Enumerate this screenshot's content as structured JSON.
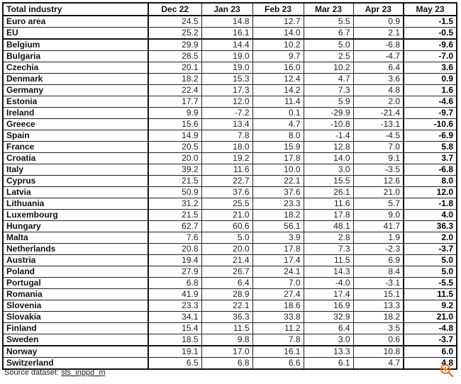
{
  "table": {
    "headers": [
      "Total industry",
      "Dec 22",
      "Jan 23",
      "Feb 23",
      "Mar 23",
      "Apr 23",
      "May 23"
    ],
    "rows": [
      {
        "name": "Euro area",
        "values": [
          "24.5",
          "14.8",
          "12.7",
          "5.5",
          "0.9",
          "-1.5"
        ]
      },
      {
        "name": "EU",
        "values": [
          "25.2",
          "16.1",
          "14.0",
          "6.7",
          "2.1",
          "-0.5"
        ]
      },
      {
        "name": "Belgium",
        "values": [
          "29.9",
          "14.4",
          "10.2",
          "5.0",
          "-6.8",
          "-9.6"
        ]
      },
      {
        "name": "Bulgaria",
        "values": [
          "28.5",
          "19.0",
          "9.7",
          "2.5",
          "-4.7",
          "-7.0"
        ]
      },
      {
        "name": "Czechia",
        "values": [
          "20.1",
          "19.0",
          "16.0",
          "10.2",
          "6.4",
          "3.6"
        ]
      },
      {
        "name": "Denmark",
        "values": [
          "18.2",
          "15.3",
          "12.4",
          "4.7",
          "3.6",
          "0.9"
        ]
      },
      {
        "name": "Germany",
        "values": [
          "22.4",
          "17.3",
          "14.2",
          "7.3",
          "4.8",
          "1.6"
        ]
      },
      {
        "name": "Estonia",
        "values": [
          "17.7",
          "12.0",
          "11.4",
          "5.9",
          "2.0",
          "-4.6"
        ]
      },
      {
        "name": "Ireland",
        "values": [
          "9.9",
          "-7.2",
          "0.1",
          "-29.9",
          "-21.4",
          "-9.7"
        ]
      },
      {
        "name": "Greece",
        "values": [
          "15.6",
          "13.4",
          "4.7",
          "-10.8",
          "-13.1",
          "-10.6"
        ]
      },
      {
        "name": "Spain",
        "values": [
          "14.9",
          "7.8",
          "8.0",
          "-1.4",
          "-4.5",
          "-6.9"
        ]
      },
      {
        "name": "France",
        "values": [
          "20.5",
          "18.0",
          "15.9",
          "12.8",
          "7.0",
          "5.8"
        ]
      },
      {
        "name": "Croatia",
        "values": [
          "20.0",
          "19.2",
          "17.8",
          "14.0",
          "9.1",
          "3.7"
        ]
      },
      {
        "name": "Italy",
        "values": [
          "39.2",
          "11.6",
          "10.0",
          "3.0",
          "-3.5",
          "-6.8"
        ]
      },
      {
        "name": "Cyprus",
        "values": [
          "21.5",
          "22.7",
          "22.1",
          "15.5",
          "12.6",
          "8.0"
        ]
      },
      {
        "name": "Latvia",
        "values": [
          "50.9",
          "37.6",
          "37.6",
          "26.1",
          "21.0",
          "12.0"
        ]
      },
      {
        "name": "Lithuania",
        "values": [
          "31.2",
          "25.5",
          "23.3",
          "11.6",
          "5.7",
          "-1.8"
        ]
      },
      {
        "name": "Luxembourg",
        "values": [
          "21.5",
          "21.0",
          "18.2",
          "17.8",
          "9.0",
          "4.0"
        ]
      },
      {
        "name": "Hungary",
        "values": [
          "62.7",
          "60.6",
          "56.1",
          "48.1",
          "41.7",
          "36.3"
        ]
      },
      {
        "name": "Malta",
        "values": [
          "7.6",
          "5.0",
          "3.9",
          "2.8",
          "1.9",
          "2.0"
        ]
      },
      {
        "name": "Netherlands",
        "values": [
          "20.8",
          "20.0",
          "17.8",
          "7.3",
          "-2.3",
          "-3.7"
        ]
      },
      {
        "name": "Austria",
        "values": [
          "19.4",
          "21.4",
          "17.4",
          "11.5",
          "6.9",
          "5.0"
        ]
      },
      {
        "name": "Poland",
        "values": [
          "27.9",
          "26.7",
          "24.1",
          "14.3",
          "8.4",
          "5.0"
        ]
      },
      {
        "name": "Portugal",
        "values": [
          "6.8",
          "6.4",
          "7.0",
          "-4.0",
          "-3.1",
          "-5.5"
        ]
      },
      {
        "name": "Romania",
        "values": [
          "41.9",
          "28.9",
          "27.4",
          "17.4",
          "15.1",
          "11.5"
        ]
      },
      {
        "name": "Slovenia",
        "values": [
          "23.3",
          "22.1",
          "18.6",
          "16.9",
          "13.3",
          "9.2"
        ]
      },
      {
        "name": "Slovakia",
        "values": [
          "34.1",
          "36.3",
          "33.8",
          "32.9",
          "18.2",
          "21.0"
        ]
      },
      {
        "name": "Finland",
        "values": [
          "15.4",
          "11.5",
          "11.2",
          "6.4",
          "3.5",
          "-4.8"
        ]
      },
      {
        "name": "Sweden",
        "values": [
          "18.5",
          "9.8",
          "7.8",
          "3.0",
          "0.6",
          "-3.7"
        ]
      },
      {
        "name": "Norway",
        "values": [
          "19.1",
          "17.0",
          "16.1",
          "13.3",
          "10.8",
          "6.0"
        ]
      },
      {
        "name": "Switzerland",
        "values": [
          "6.5",
          "6.8",
          "6.6",
          "6.1",
          "4.7",
          "4.8"
        ]
      }
    ]
  },
  "source": {
    "label": "Source dataset: ",
    "link": "sts_inppd_m"
  },
  "icons": {
    "zoom": "zoom-in-icon",
    "zoom_color": "#e8742a"
  }
}
